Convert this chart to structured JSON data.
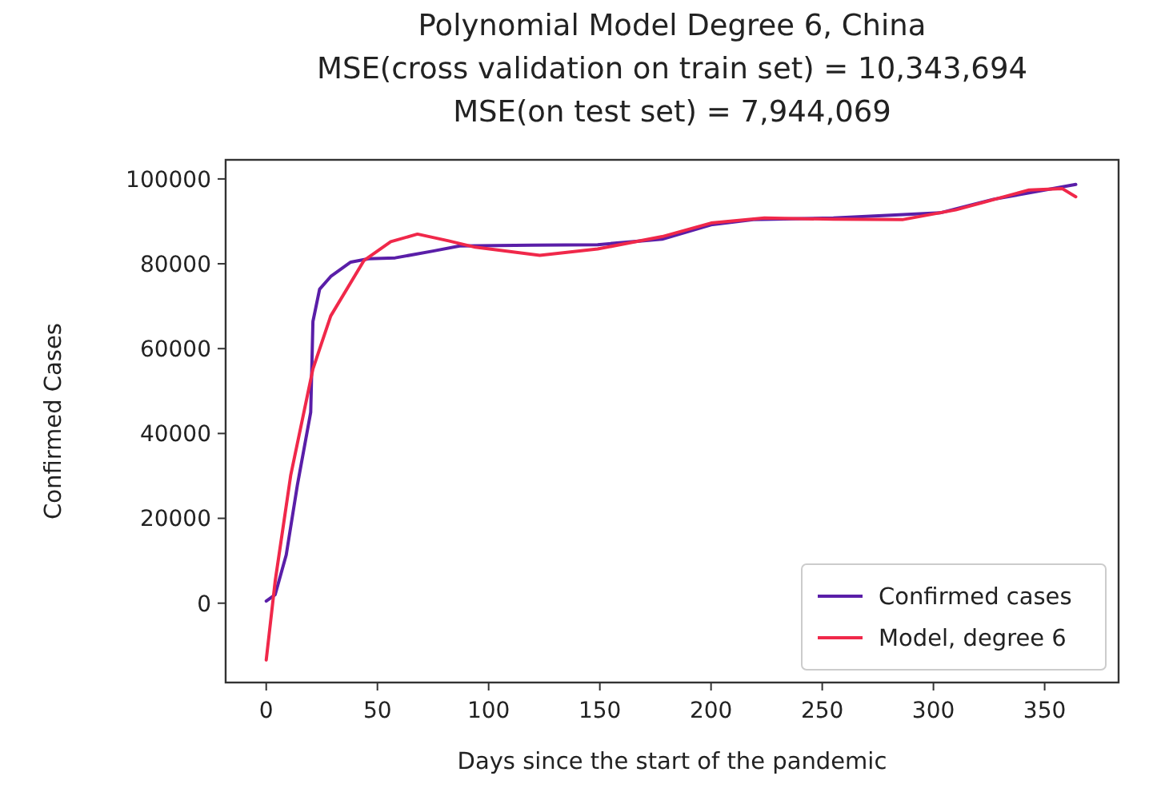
{
  "chart_data": {
    "type": "line",
    "title": "Polynomial Model Degree 6, China\nMSE(cross validation on train set) = 10,343,694\nMSE(on test set) = 7,944,069",
    "xlabel": "Days since the start of the pandemic",
    "ylabel": "Confirmed Cases",
    "xlim": [
      -18.25,
      383.25
    ],
    "ylim": [
      -18700,
      104500
    ],
    "xticks": [
      0,
      50,
      100,
      150,
      200,
      250,
      300,
      350
    ],
    "yticks": [
      0,
      20000,
      40000,
      60000,
      80000,
      100000
    ],
    "legend": "bottom right",
    "grid": false,
    "series": [
      {
        "name": "Confirmed cases",
        "color": "#5a1ea8",
        "x": [
          0,
          4,
          9,
          14,
          20,
          21,
          24,
          29,
          38,
          46,
          58,
          75,
          87,
          120,
          149,
          178,
          200,
          219,
          255,
          303,
          327,
          364
        ],
        "values": [
          500,
          2000,
          11400,
          27800,
          45000,
          66400,
          74000,
          77000,
          80400,
          81200,
          81400,
          83000,
          84200,
          84400,
          84500,
          85800,
          89200,
          90400,
          90800,
          92000,
          95200,
          98700
        ]
      },
      {
        "name": "Model, degree 6",
        "color": "#f0284a",
        "x": [
          0,
          4,
          11,
          21,
          29,
          44,
          56,
          68,
          82,
          94,
          123,
          149,
          178,
          200,
          224,
          255,
          286,
          310,
          343,
          358,
          364
        ],
        "values": [
          -13400,
          5100,
          30100,
          55200,
          67700,
          80800,
          85200,
          87000,
          85400,
          83900,
          82000,
          83500,
          86400,
          89600,
          90800,
          90500,
          90400,
          92700,
          97400,
          97700,
          95800
        ]
      }
    ]
  }
}
